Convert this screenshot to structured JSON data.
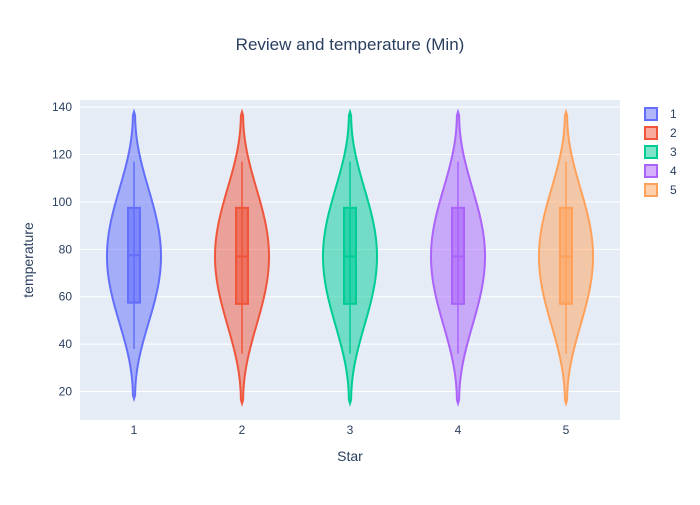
{
  "chart_data": {
    "type": "violin",
    "title": "Review and temperature (Min)",
    "xlabel": "Star",
    "ylabel": "temperature",
    "categories": [
      "1",
      "2",
      "3",
      "4",
      "5"
    ],
    "ylim": [
      8,
      143
    ],
    "yticks": [
      20,
      40,
      60,
      80,
      100,
      120,
      140
    ],
    "grid": true,
    "legend_position": "top-right",
    "series": [
      {
        "name": "1",
        "color": "#636efa",
        "min": 38,
        "q1": 57.5,
        "median": 77.5,
        "q3": 97.5,
        "max": 117,
        "kde_min": 17,
        "kde_max": 138,
        "max_width_at": 77
      },
      {
        "name": "2",
        "color": "#ef553b",
        "min": 36,
        "q1": 57,
        "median": 77,
        "q3": 97.5,
        "max": 117,
        "kde_min": 15,
        "kde_max": 138,
        "max_width_at": 77
      },
      {
        "name": "3",
        "color": "#00cc96",
        "min": 36,
        "q1": 57,
        "median": 77,
        "q3": 97.5,
        "max": 117,
        "kde_min": 15,
        "kde_max": 138,
        "max_width_at": 77
      },
      {
        "name": "4",
        "color": "#ab63fa",
        "min": 36,
        "q1": 57,
        "median": 77,
        "q3": 97.5,
        "max": 117,
        "kde_min": 15,
        "kde_max": 138,
        "max_width_at": 77
      },
      {
        "name": "5",
        "color": "#ffa15a",
        "min": 36,
        "q1": 57,
        "median": 77,
        "q3": 97.5,
        "max": 117,
        "kde_min": 15,
        "kde_max": 138,
        "max_width_at": 77
      }
    ]
  }
}
